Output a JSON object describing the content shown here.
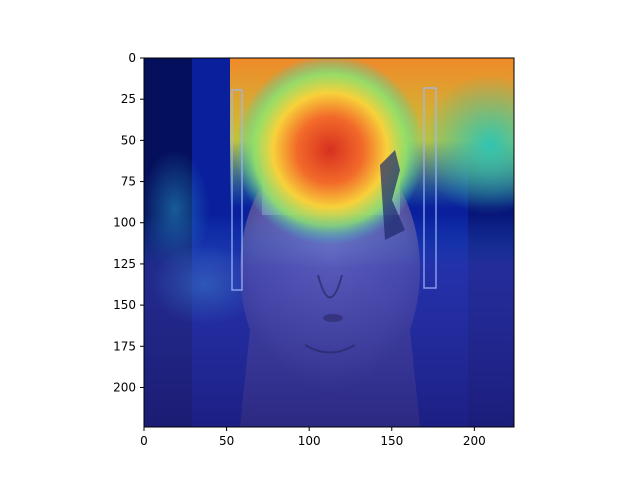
{
  "figure": {
    "image_description": "Grad-CAM style heatmap overlay on a surreal portrait: a woman's face with an archway and trees superimposed on the upper head; hottest activation (red) over the forehead/arch area, cooler (green/cyan) around edges, blue over the lower face.",
    "colormap": "jet",
    "colors": {
      "hot": "#e0302a",
      "warm": "#f7c234",
      "mid": "#36d6b2",
      "cool": "#1b5de0",
      "cold": "#06105e",
      "face_tint": "#5a5aa8"
    }
  },
  "axes": {
    "x": {
      "ticks": [
        "0",
        "50",
        "100",
        "150",
        "200"
      ],
      "range": [
        0,
        224
      ]
    },
    "y": {
      "ticks": [
        "0",
        "25",
        "50",
        "75",
        "100",
        "125",
        "150",
        "175",
        "200"
      ],
      "range": [
        0,
        224
      ],
      "inverted": true
    }
  }
}
